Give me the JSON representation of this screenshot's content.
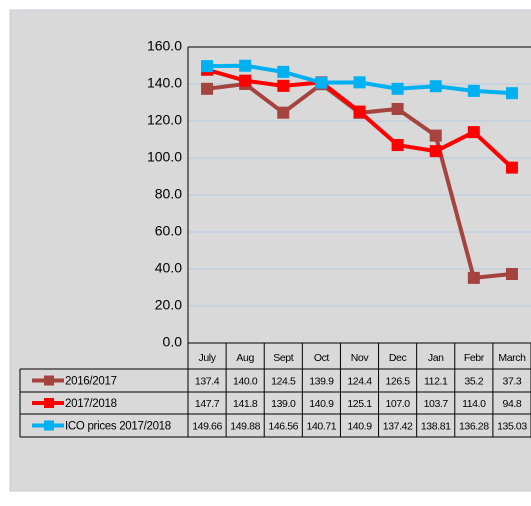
{
  "chart_data": {
    "type": "line",
    "categories": [
      "July",
      "Aug",
      "Sept",
      "Oct",
      "Nov",
      "Dec",
      "Jan",
      "Febr",
      "March"
    ],
    "series": [
      {
        "name": "2016/2017",
        "color": "#a5433e",
        "values": [
          137.4,
          140.0,
          124.5,
          139.9,
          124.4,
          126.5,
          112.1,
          35.2,
          37.3
        ],
        "value_labels": [
          "137.4",
          "140.0",
          "124.5",
          "139.9",
          "124.4",
          "126.5",
          "112.1",
          "35.2",
          "37.3"
        ]
      },
      {
        "name": "2017/2018",
        "color": "#ff0000",
        "values": [
          147.7,
          141.8,
          139.0,
          140.9,
          125.1,
          107.0,
          103.7,
          114.0,
          94.8
        ],
        "value_labels": [
          "147.7",
          "141.8",
          "139.0",
          "140.9",
          "125.1",
          "107.0",
          "103.7",
          "114.0",
          "94.8"
        ]
      },
      {
        "name": "ICO prices 2017/2018",
        "color": "#00b0f0",
        "values": [
          149.66,
          149.88,
          146.56,
          140.71,
          140.9,
          137.42,
          138.81,
          136.28,
          135.03
        ]
      }
    ],
    "ylim": [
      0,
      160
    ],
    "yticks": [
      {
        "value": 0,
        "label": "0.0"
      },
      {
        "value": 20,
        "label": "20.0"
      },
      {
        "value": 40,
        "label": "40.0"
      },
      {
        "value": 60,
        "label": "60.0"
      },
      {
        "value": 80,
        "label": "80.0"
      },
      {
        "value": 100,
        "label": "100.0"
      },
      {
        "value": 120,
        "label": "120.0"
      },
      {
        "value": 140,
        "label": "140.0"
      },
      {
        "value": 160,
        "label": "160.0"
      }
    ],
    "grid": true
  }
}
